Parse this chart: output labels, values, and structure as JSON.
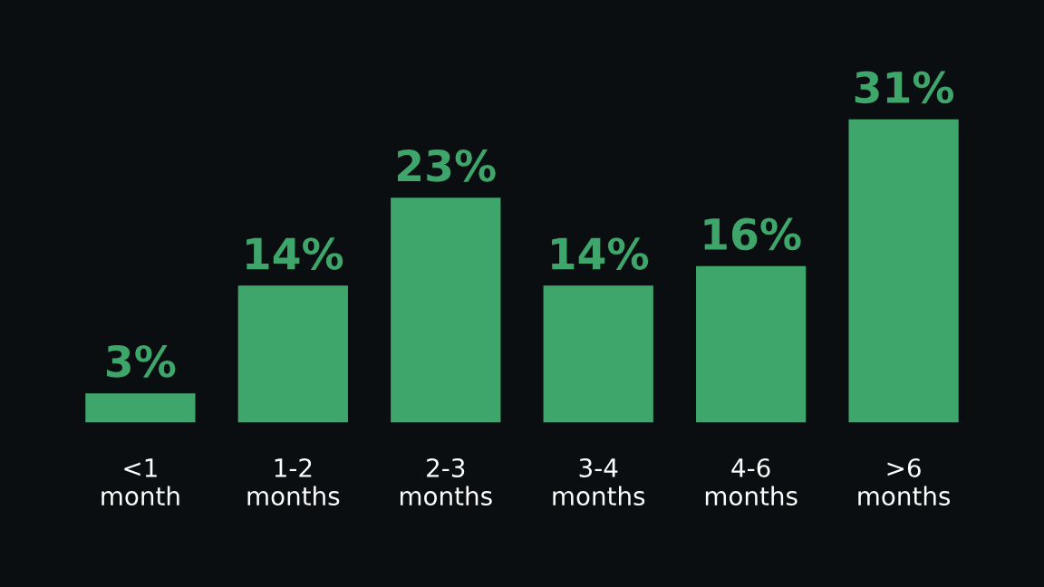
{
  "chart_data": {
    "type": "bar",
    "categories": [
      "<1\nmonth",
      "1-2\nmonths",
      "2-3\nmonths",
      "3-4\nmonths",
      "4-6\nmonths",
      ">6\nmonths"
    ],
    "values": [
      3,
      14,
      23,
      14,
      16,
      31
    ],
    "value_labels": [
      "3%",
      "14%",
      "23%",
      "14%",
      "16%",
      "31%"
    ],
    "color": "#3fa66b",
    "tick_labels": "x"
  }
}
